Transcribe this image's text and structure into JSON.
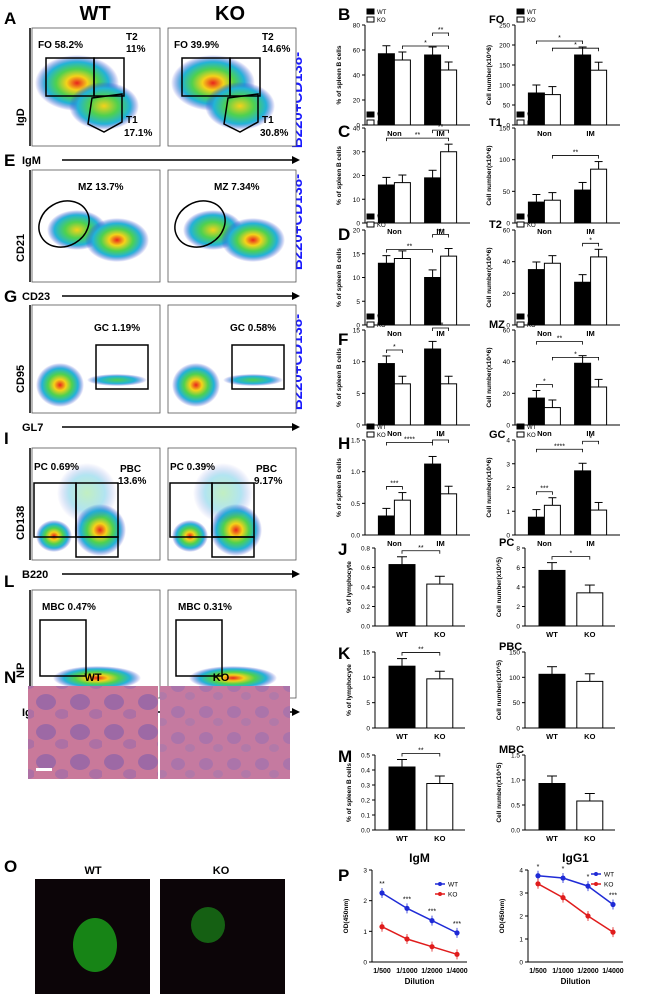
{
  "colors": {
    "wt_bar": "#000000",
    "ko_bar": "#ffffff",
    "wt_line": "#1f2bd6",
    "ko_line": "#e01c1c",
    "blue_label": "#1a1aff"
  },
  "flow": {
    "header_wt": "WT",
    "header_ko": "KO",
    "side_label_1": "B220+CD138-",
    "side_label_2": "B220+CD138-",
    "side_label_3": "B220+CD138-",
    "panels": [
      {
        "letter": "A",
        "ylabel": "IgD",
        "xlabel": "IgM",
        "wt": [
          "FO  58.2%",
          "T2",
          "11%",
          "T1",
          "17.1%"
        ],
        "ko": [
          "FO  39.9%",
          "T2",
          "14.6%",
          "T1",
          "30.8%"
        ]
      },
      {
        "letter": "E",
        "ylabel": "CD21",
        "xlabel": "CD23",
        "wt": [
          "MZ 13.7%"
        ],
        "ko": [
          "MZ  7.34%"
        ]
      },
      {
        "letter": "G",
        "ylabel": "CD95",
        "xlabel": "GL7",
        "wt": [
          "GC  1.19%"
        ],
        "ko": [
          "GC  0.58%"
        ]
      },
      {
        "letter": "I",
        "ylabel": "CD138",
        "xlabel": "B220",
        "wt": [
          "PC 0.69%",
          "PBC",
          "13.6%"
        ],
        "ko": [
          "PC 0.39%",
          "PBC",
          "9.17%"
        ]
      },
      {
        "letter": "L",
        "ylabel": "NP",
        "xlabel": "IgM-IgD",
        "wt": [
          "MBC 0.47%"
        ],
        "ko": [
          "MBC 0.31%"
        ]
      }
    ]
  },
  "histo": {
    "letter": "N",
    "wt": "WT",
    "ko": "KO"
  },
  "fluor": {
    "letter": "O",
    "wt": "WT",
    "ko": "KO"
  },
  "legend": {
    "wt": "WT",
    "ko": "KO"
  },
  "chart_data": [
    {
      "panel": "B",
      "title": "",
      "type": "bar",
      "ylabel": "% of spleen B cells",
      "categories": [
        "Non",
        "IM"
      ],
      "ylim": [
        0,
        80
      ],
      "yticks": [
        "0",
        "20",
        "40",
        "60",
        "80"
      ],
      "series": [
        {
          "name": "WT",
          "values": [
            57,
            56
          ]
        },
        {
          "name": "KO",
          "values": [
            52,
            44
          ]
        }
      ],
      "sig": [
        {
          "a": 1,
          "b": 3,
          "label": "*"
        },
        {
          "a": 2,
          "b": 3,
          "label": "**"
        }
      ]
    },
    {
      "panel": "FO",
      "title": "FO",
      "type": "bar",
      "ylabel": "Cell number(x10^6)",
      "categories": [
        "Non",
        "IM"
      ],
      "ylim": [
        0,
        250
      ],
      "yticks": [
        "0",
        "50",
        "100",
        "150",
        "200",
        "250"
      ],
      "series": [
        {
          "name": "WT",
          "values": [
            80,
            175
          ]
        },
        {
          "name": "KO",
          "values": [
            76,
            137
          ]
        }
      ],
      "sig": [
        {
          "a": 0,
          "b": 2,
          "label": "*"
        },
        {
          "a": 1,
          "b": 3,
          "label": "*"
        }
      ]
    },
    {
      "panel": "C",
      "title": "",
      "type": "bar",
      "ylabel": "% of spleen B cells",
      "categories": [
        "Non",
        "IM"
      ],
      "ylim": [
        0,
        40
      ],
      "yticks": [
        "0",
        "10",
        "20",
        "30",
        "40"
      ],
      "series": [
        {
          "name": "WT",
          "values": [
            16,
            19
          ]
        },
        {
          "name": "KO",
          "values": [
            17,
            30
          ]
        }
      ],
      "sig": [
        {
          "a": 0,
          "b": 3,
          "label": "**"
        },
        {
          "a": 2,
          "b": 3,
          "label": "**"
        }
      ]
    },
    {
      "panel": "T1",
      "title": "T1",
      "type": "bar",
      "ylabel": "Cell number(x10^6)",
      "categories": [
        "Non",
        "IM"
      ],
      "ylim": [
        0,
        150
      ],
      "yticks": [
        "0",
        "50",
        "100",
        "150"
      ],
      "series": [
        {
          "name": "WT",
          "values": [
            33,
            52
          ]
        },
        {
          "name": "KO",
          "values": [
            36,
            85
          ]
        }
      ],
      "sig": [
        {
          "a": 1,
          "b": 3,
          "label": "**"
        }
      ]
    },
    {
      "panel": "D",
      "title": "",
      "type": "bar",
      "ylabel": "% of spleen B cells",
      "categories": [
        "Non",
        "IM"
      ],
      "ylim": [
        0,
        20
      ],
      "yticks": [
        "0",
        "5",
        "10",
        "15",
        "20"
      ],
      "series": [
        {
          "name": "WT",
          "values": [
            13,
            10
          ]
        },
        {
          "name": "KO",
          "values": [
            14,
            14.5
          ]
        }
      ],
      "sig": [
        {
          "a": 0,
          "b": 2,
          "label": "**"
        },
        {
          "a": 2,
          "b": 3,
          "label": "***"
        }
      ]
    },
    {
      "panel": "T2",
      "title": "T2",
      "type": "bar",
      "ylabel": "Cell number(x10^6)",
      "categories": [
        "Non",
        "IM"
      ],
      "ylim": [
        0,
        60
      ],
      "yticks": [
        "0",
        "20",
        "40",
        "60"
      ],
      "series": [
        {
          "name": "WT",
          "values": [
            35,
            27
          ]
        },
        {
          "name": "KO",
          "values": [
            39,
            43
          ]
        }
      ],
      "sig": [
        {
          "a": 2,
          "b": 3,
          "label": "*"
        }
      ]
    },
    {
      "panel": "F",
      "title": "",
      "type": "bar",
      "ylabel": "% of spleen B cells",
      "categories": [
        "Non",
        "IM"
      ],
      "ylim": [
        0,
        15
      ],
      "yticks": [
        "0",
        "5",
        "10",
        "15"
      ],
      "series": [
        {
          "name": "WT",
          "values": [
            9.7,
            12
          ]
        },
        {
          "name": "KO",
          "values": [
            6.5,
            6.5
          ]
        }
      ],
      "sig": [
        {
          "a": 0,
          "b": 1,
          "label": "*"
        },
        {
          "a": 2,
          "b": 3,
          "label": "**"
        }
      ]
    },
    {
      "panel": "MZ",
      "title": "MZ",
      "type": "bar",
      "ylabel": "Cell number(x10^6)",
      "categories": [
        "Non",
        "IM"
      ],
      "ylim": [
        0,
        60
      ],
      "yticks": [
        "0",
        "20",
        "40",
        "60"
      ],
      "series": [
        {
          "name": "WT",
          "values": [
            17,
            39
          ]
        },
        {
          "name": "KO",
          "values": [
            11,
            24
          ]
        }
      ],
      "sig": [
        {
          "a": 0,
          "b": 1,
          "label": "*"
        },
        {
          "a": 0,
          "b": 2,
          "label": "**"
        },
        {
          "a": 1,
          "b": 3,
          "label": "*"
        }
      ]
    },
    {
      "panel": "H",
      "title": "",
      "type": "bar",
      "ylabel": "% of spleen B cells",
      "categories": [
        "Non",
        "IM"
      ],
      "ylim": [
        0,
        1.5
      ],
      "yticks": [
        "0.0",
        "0.5",
        "1.0",
        "1.5"
      ],
      "series": [
        {
          "name": "WT",
          "values": [
            0.3,
            1.12
          ]
        },
        {
          "name": "KO",
          "values": [
            0.55,
            0.65
          ]
        }
      ],
      "sig": [
        {
          "a": 0,
          "b": 1,
          "label": "***"
        },
        {
          "a": 0,
          "b": 2,
          "label": "****"
        },
        {
          "a": 2,
          "b": 3,
          "label": "*"
        }
      ]
    },
    {
      "panel": "GC",
      "title": "GC",
      "type": "bar",
      "ylabel": "Cell number(x10^6)",
      "categories": [
        "Non",
        "IM"
      ],
      "ylim": [
        0,
        4
      ],
      "yticks": [
        "0",
        "1",
        "2",
        "3",
        "4"
      ],
      "series": [
        {
          "name": "WT",
          "values": [
            0.75,
            2.7
          ]
        },
        {
          "name": "KO",
          "values": [
            1.25,
            1.05
          ]
        }
      ],
      "sig": [
        {
          "a": 0,
          "b": 1,
          "label": "***"
        },
        {
          "a": 0,
          "b": 2,
          "label": "****"
        },
        {
          "a": 2,
          "b": 3,
          "label": "*"
        }
      ]
    },
    {
      "panel": "J",
      "title": "",
      "type": "bar",
      "ylabel": "% of lymphocyte",
      "categories": [
        "WT",
        "KO"
      ],
      "ylim": [
        0,
        0.8
      ],
      "yticks": [
        "0.0",
        "0.2",
        "0.4",
        "0.6",
        "0.8"
      ],
      "series": [
        {
          "name": "",
          "values": [
            0.63,
            0.43
          ]
        }
      ],
      "sig": [
        {
          "a": 0,
          "b": 1,
          "label": "**"
        }
      ]
    },
    {
      "panel": "PC",
      "title": "PC",
      "type": "bar",
      "ylabel": "Cell number(x10^5)",
      "categories": [
        "WT",
        "KO"
      ],
      "ylim": [
        0,
        8
      ],
      "yticks": [
        "0",
        "2",
        "4",
        "6",
        "8"
      ],
      "series": [
        {
          "name": "",
          "values": [
            5.7,
            3.4
          ]
        }
      ],
      "sig": [
        {
          "a": 0,
          "b": 1,
          "label": "*"
        }
      ]
    },
    {
      "panel": "K",
      "title": "",
      "type": "bar",
      "ylabel": "% of lymphocyte",
      "categories": [
        "WT",
        "KO"
      ],
      "ylim": [
        0,
        15
      ],
      "yticks": [
        "0",
        "5",
        "10",
        "15"
      ],
      "series": [
        {
          "name": "",
          "values": [
            12.2,
            9.7
          ]
        }
      ],
      "sig": [
        {
          "a": 0,
          "b": 1,
          "label": "**"
        }
      ]
    },
    {
      "panel": "PBC",
      "title": "PBC",
      "type": "bar",
      "ylabel": "Cell number(x10^5)",
      "categories": [
        "WT",
        "KO"
      ],
      "ylim": [
        0,
        150
      ],
      "yticks": [
        "0",
        "50",
        "100",
        "150"
      ],
      "series": [
        {
          "name": "",
          "values": [
            106,
            92
          ]
        }
      ],
      "sig": []
    },
    {
      "panel": "M",
      "title": "",
      "type": "bar",
      "ylabel": "% of spleen B cells",
      "categories": [
        "WT",
        "KO"
      ],
      "ylim": [
        0,
        0.5
      ],
      "yticks": [
        "0.0",
        "0.1",
        "0.2",
        "0.3",
        "0.4",
        "0.5"
      ],
      "series": [
        {
          "name": "",
          "values": [
            0.42,
            0.31
          ]
        }
      ],
      "sig": [
        {
          "a": 0,
          "b": 1,
          "label": "**"
        }
      ]
    },
    {
      "panel": "MBC",
      "title": "MBC",
      "type": "bar",
      "ylabel": "Cell number(x10^5)",
      "categories": [
        "WT",
        "KO"
      ],
      "ylim": [
        0,
        1.5
      ],
      "yticks": [
        "0.0",
        "0.5",
        "1.0",
        "1.5"
      ],
      "series": [
        {
          "name": "",
          "values": [
            0.93,
            0.58
          ]
        }
      ],
      "sig": []
    },
    {
      "panel": "IgM",
      "title": "IgM",
      "type": "line",
      "xlabel": "Dilution",
      "ylabel": "OD(450nm)",
      "categories": [
        "1/500",
        "1/1000",
        "1/2000",
        "1/4000"
      ],
      "ylim": [
        0,
        3
      ],
      "yticks": [
        "0",
        "1",
        "2",
        "3"
      ],
      "series": [
        {
          "name": "WT",
          "values": [
            2.25,
            1.75,
            1.35,
            0.95
          ]
        },
        {
          "name": "KO",
          "values": [
            1.15,
            0.75,
            0.5,
            0.25
          ]
        }
      ],
      "sig_labels": [
        "**",
        "***",
        "***",
        "***"
      ]
    },
    {
      "panel": "IgG1",
      "title": "IgG1",
      "type": "line",
      "xlabel": "Dilution",
      "ylabel": "OD(450nm)",
      "categories": [
        "1/500",
        "1/1000",
        "1/2000",
        "1/4000"
      ],
      "ylim": [
        0,
        4
      ],
      "yticks": [
        "0",
        "1",
        "2",
        "3",
        "4"
      ],
      "series": [
        {
          "name": "WT",
          "values": [
            3.75,
            3.65,
            3.3,
            2.5
          ]
        },
        {
          "name": "KO",
          "values": [
            3.4,
            2.8,
            2.0,
            1.3
          ]
        }
      ],
      "sig_labels": [
        "*",
        "*",
        "*",
        "***"
      ]
    }
  ]
}
